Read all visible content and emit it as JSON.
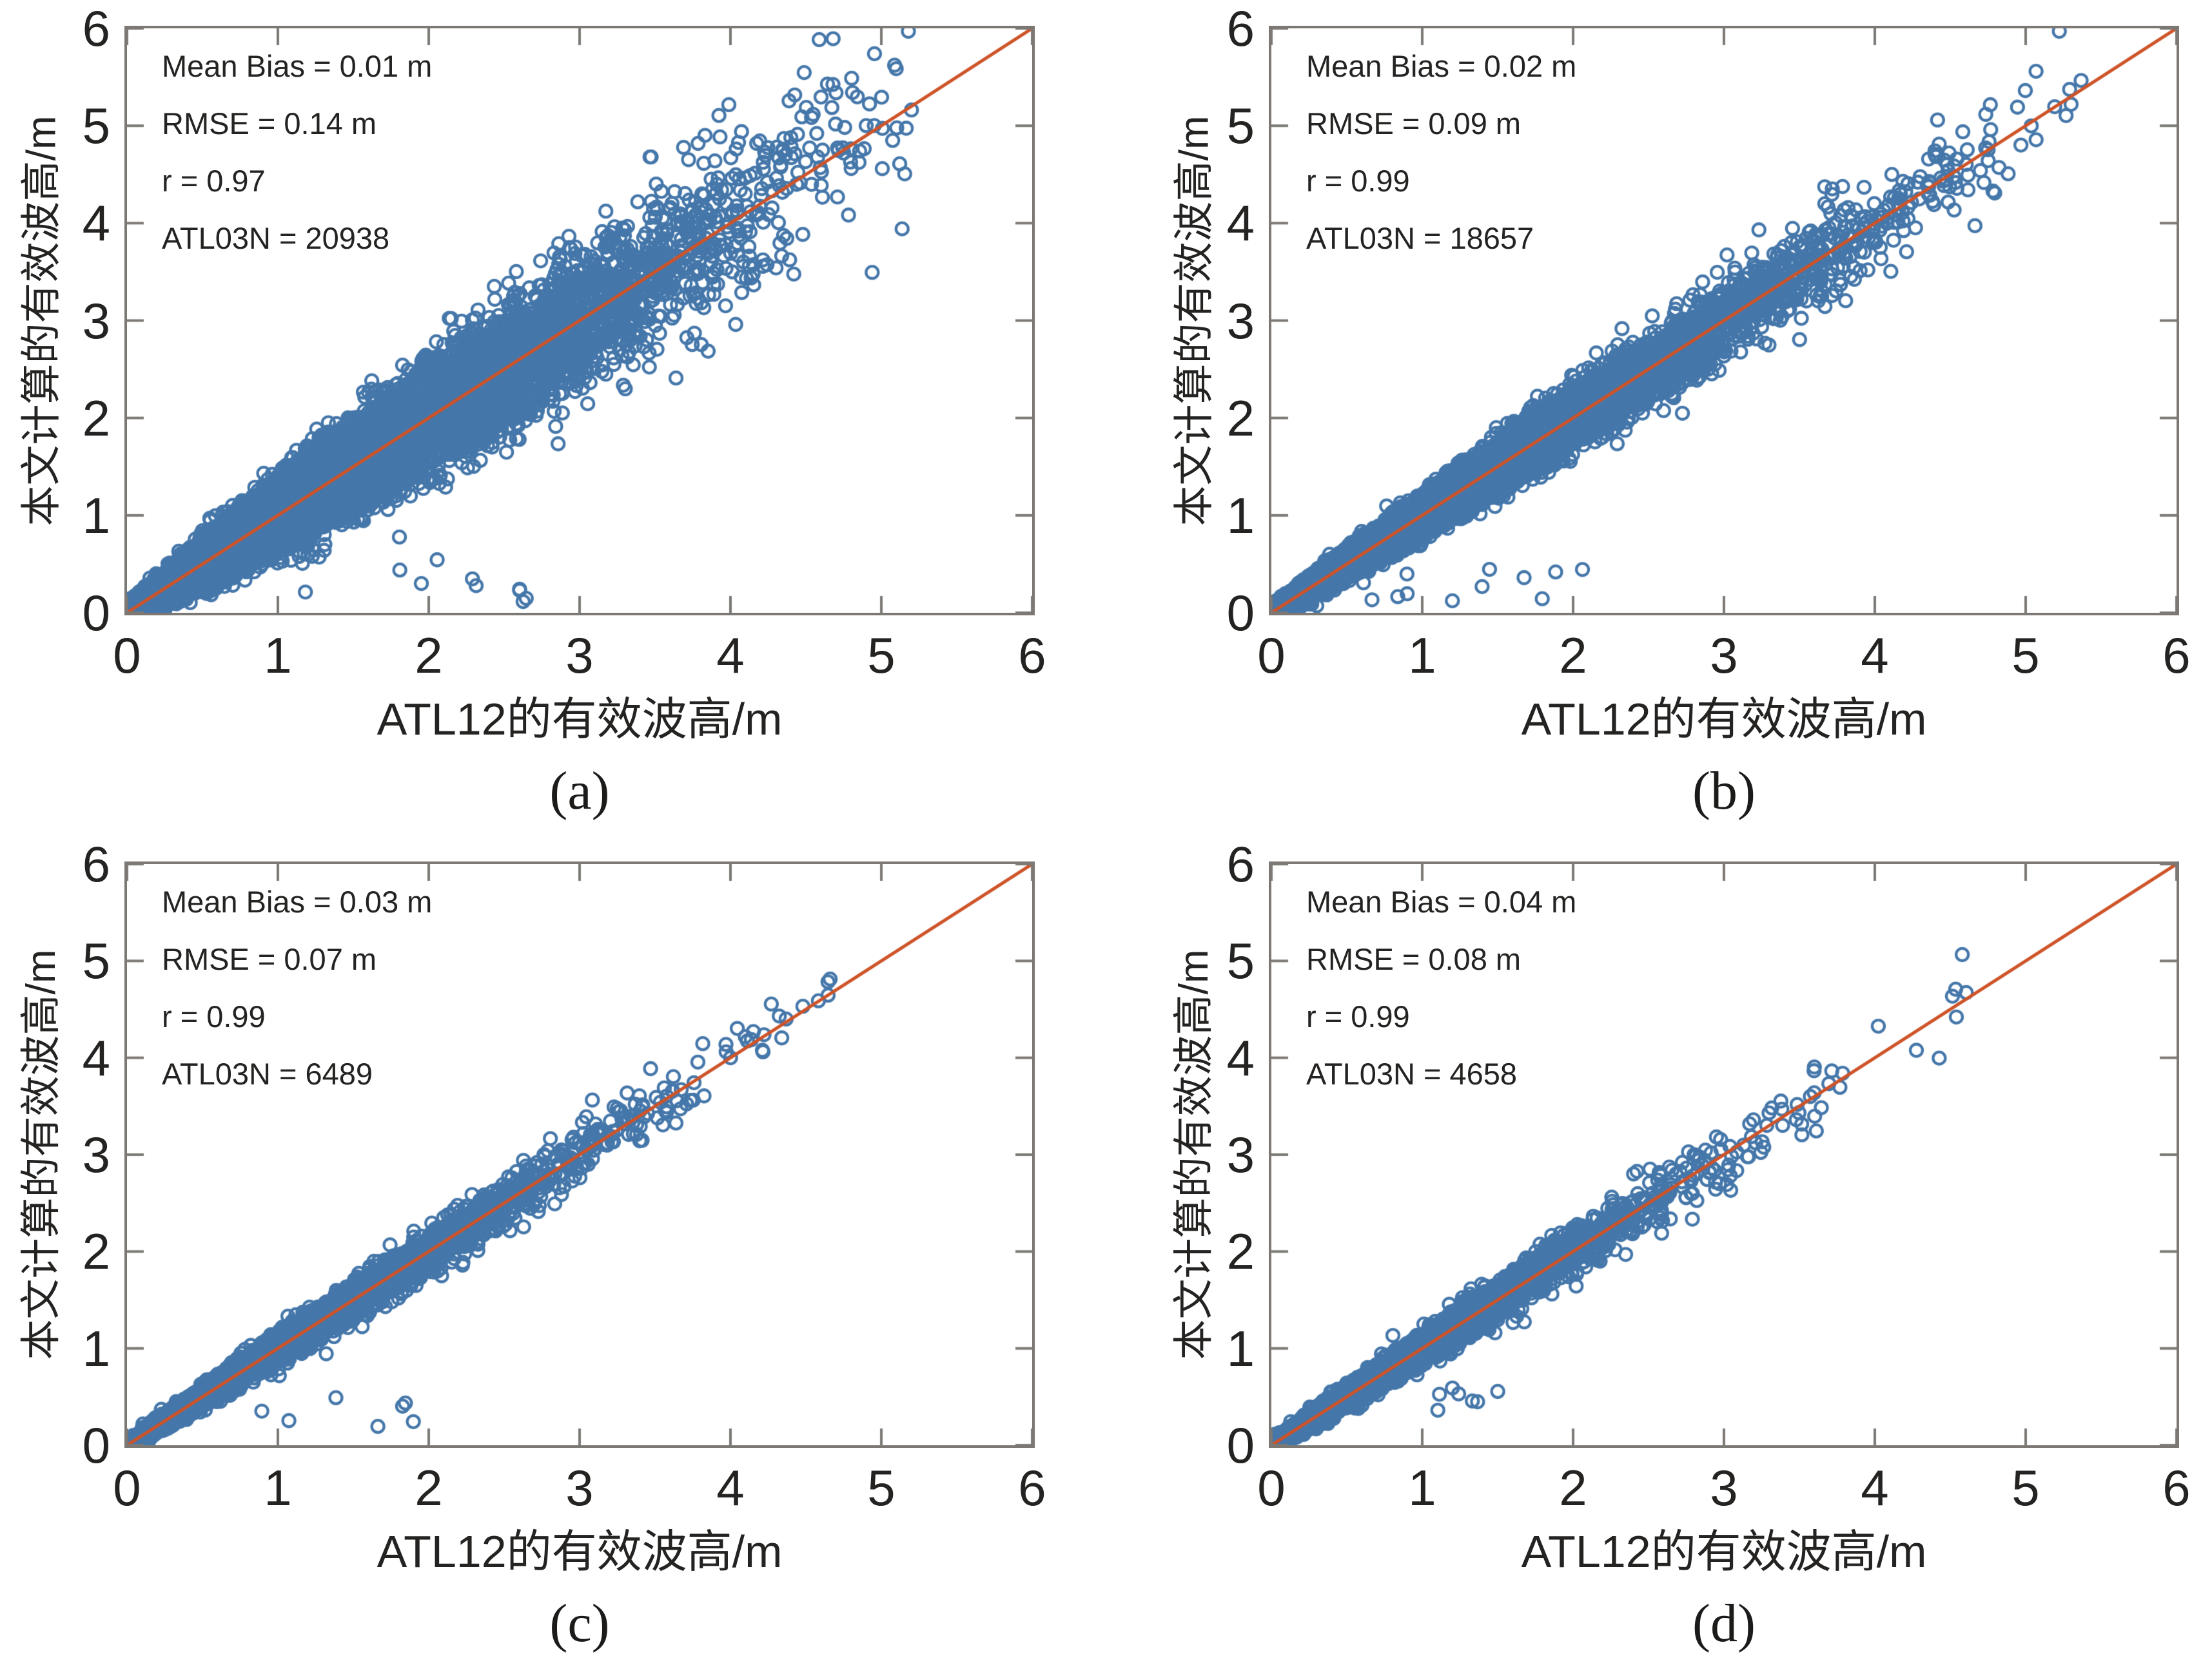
{
  "figure": {
    "xlabel": "ATL12的有效波高/m",
    "ylabel": "本文计算的有效波高/m",
    "tick_labels": [
      "0",
      "1",
      "2",
      "3",
      "4",
      "5",
      "6"
    ],
    "colors": {
      "marker": "#4577aa",
      "identity_line": "#ce5328",
      "axis": "#7c7975",
      "text": "#242321"
    }
  },
  "chart_data": [
    {
      "type": "scatter",
      "panel_label": "(a)",
      "xlabel": "ATL12的有效波高/m",
      "ylabel": "本文计算的有效波高/m",
      "xlim": [
        0,
        6
      ],
      "ylim": [
        0,
        6
      ],
      "xticks": [
        0,
        1,
        2,
        3,
        4,
        5,
        6
      ],
      "yticks": [
        0,
        1,
        2,
        3,
        4,
        5,
        6
      ],
      "grid": false,
      "stats": {
        "mean_bias_m": 0.01,
        "rmse_m": 0.14,
        "r": 0.97,
        "atl03n": 20938
      },
      "stats_lines": [
        "Mean Bias = 0.01 m",
        "RMSE = 0.14 m",
        "r = 0.97",
        "ATL03N = 20938"
      ],
      "identity_line": {
        "slope": 1,
        "intercept": 0,
        "color": "#ce5328"
      },
      "marker": {
        "shape": "open-circle",
        "color": "#4577aa"
      },
      "cloud": {
        "seed": 11,
        "n": 20938,
        "theta": 0.58,
        "x_max": 5.2,
        "sigma0": 0.05,
        "sigma_slope": 0.105,
        "below_outliers": {
          "count": 14,
          "x_min": 0.55,
          "x_max": 2.7,
          "y_min": 0.08,
          "y_max": 0.6
        }
      }
    },
    {
      "type": "scatter",
      "panel_label": "(b)",
      "xlabel": "ATL12的有效波高/m",
      "ylabel": "本文计算的有效波高/m",
      "xlim": [
        0,
        6
      ],
      "ylim": [
        0,
        6
      ],
      "xticks": [
        0,
        1,
        2,
        3,
        4,
        5,
        6
      ],
      "yticks": [
        0,
        1,
        2,
        3,
        4,
        5,
        6
      ],
      "grid": false,
      "stats": {
        "mean_bias_m": 0.02,
        "rmse_m": 0.09,
        "r": 0.99,
        "atl03n": 18657
      },
      "stats_lines": [
        "Mean Bias = 0.02 m",
        "RMSE = 0.09 m",
        "r = 0.99",
        "ATL03N = 18657"
      ],
      "identity_line": {
        "slope": 1,
        "intercept": 0,
        "color": "#ce5328"
      },
      "marker": {
        "shape": "open-circle",
        "color": "#4577aa"
      },
      "cloud": {
        "seed": 22,
        "n": 18657,
        "theta": 0.55,
        "x_max": 5.4,
        "sigma0": 0.035,
        "sigma_slope": 0.055,
        "below_outliers": {
          "count": 12,
          "x_min": 0.5,
          "x_max": 2.2,
          "y_min": 0.1,
          "y_max": 0.55
        }
      }
    },
    {
      "type": "scatter",
      "panel_label": "(c)",
      "xlabel": "ATL12的有效波高/m",
      "ylabel": "本文计算的有效波高/m",
      "xlim": [
        0,
        6
      ],
      "ylim": [
        0,
        6
      ],
      "xticks": [
        0,
        1,
        2,
        3,
        4,
        5,
        6
      ],
      "yticks": [
        0,
        1,
        2,
        3,
        4,
        5,
        6
      ],
      "grid": false,
      "stats": {
        "mean_bias_m": 0.03,
        "rmse_m": 0.07,
        "r": 0.99,
        "atl03n": 6489
      },
      "stats_lines": [
        "Mean Bias = 0.03 m",
        "RMSE = 0.07 m",
        "r = 0.99",
        "ATL03N = 6489"
      ],
      "identity_line": {
        "slope": 1,
        "intercept": 0,
        "color": "#ce5328"
      },
      "marker": {
        "shape": "open-circle",
        "color": "#4577aa"
      },
      "cloud": {
        "seed": 33,
        "n": 6489,
        "theta": 0.5,
        "x_max": 4.9,
        "sigma0": 0.028,
        "sigma_slope": 0.042,
        "below_outliers": {
          "count": 9,
          "x_min": 0.7,
          "x_max": 1.9,
          "y_min": 0.15,
          "y_max": 0.95
        }
      }
    },
    {
      "type": "scatter",
      "panel_label": "(d)",
      "xlabel": "ATL12的有效波高/m",
      "ylabel": "本文计算的有效波高/m",
      "xlim": [
        0,
        6
      ],
      "ylim": [
        0,
        6
      ],
      "xticks": [
        0,
        1,
        2,
        3,
        4,
        5,
        6
      ],
      "yticks": [
        0,
        1,
        2,
        3,
        4,
        5,
        6
      ],
      "grid": false,
      "stats": {
        "mean_bias_m": 0.04,
        "rmse_m": 0.08,
        "r": 0.99,
        "atl03n": 4658
      },
      "stats_lines": [
        "Mean Bias = 0.04 m",
        "RMSE = 0.08 m",
        "r = 0.99",
        "ATL03N = 4658"
      ],
      "identity_line": {
        "slope": 1,
        "intercept": 0,
        "color": "#ce5328"
      },
      "marker": {
        "shape": "open-circle",
        "color": "#4577aa"
      },
      "cloud": {
        "seed": 44,
        "n": 4658,
        "theta": 0.45,
        "x_max": 5.0,
        "sigma0": 0.03,
        "sigma_slope": 0.048,
        "below_outliers": {
          "count": 7,
          "x_min": 1.0,
          "x_max": 1.6,
          "y_min": 0.3,
          "y_max": 0.6
        }
      }
    }
  ]
}
